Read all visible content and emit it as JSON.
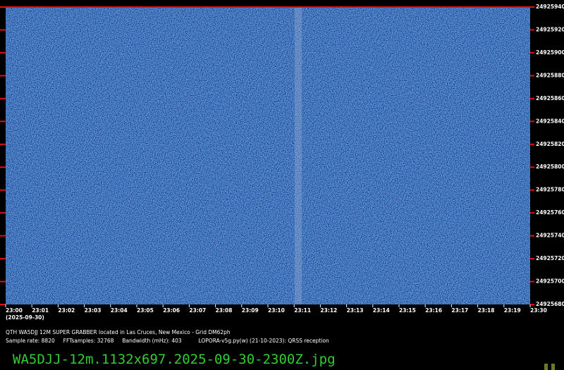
{
  "chart_data": {
    "type": "spectrogram",
    "categories": [
      "23:00",
      "23:01",
      "23:02",
      "23:03",
      "23:04",
      "23:05",
      "23:06",
      "23:07",
      "23:08",
      "23:09",
      "23:10",
      "23:11",
      "23:12",
      "23:13",
      "23:14",
      "23:15",
      "23:16",
      "23:17",
      "23:18",
      "23:19",
      "23:30"
    ],
    "date": "(2025-09-30)",
    "ylim": [
      24925680,
      24925940
    ],
    "yticks": [
      24925680,
      24925700,
      24925720,
      24925740,
      24925760,
      24925780,
      24925800,
      24925820,
      24925840,
      24925860,
      24925880,
      24925900,
      24925920,
      24925940
    ],
    "tick_color": "#e01010",
    "info_lines": [
      "QTH WA5DJJ 12M SUPER GRABBER located in Las Cruces, New Mexico - Grid DM62ph",
      "Sample rate: 8820     FFTsamples: 32768     Bandwidth (mHz): 403          LOPORA-v5g.py(w) (21-10-2023): QRSS reception"
    ],
    "filename": "WA5DJJ-12m.1132x697.2025-09-30-2300Z.jpg"
  }
}
